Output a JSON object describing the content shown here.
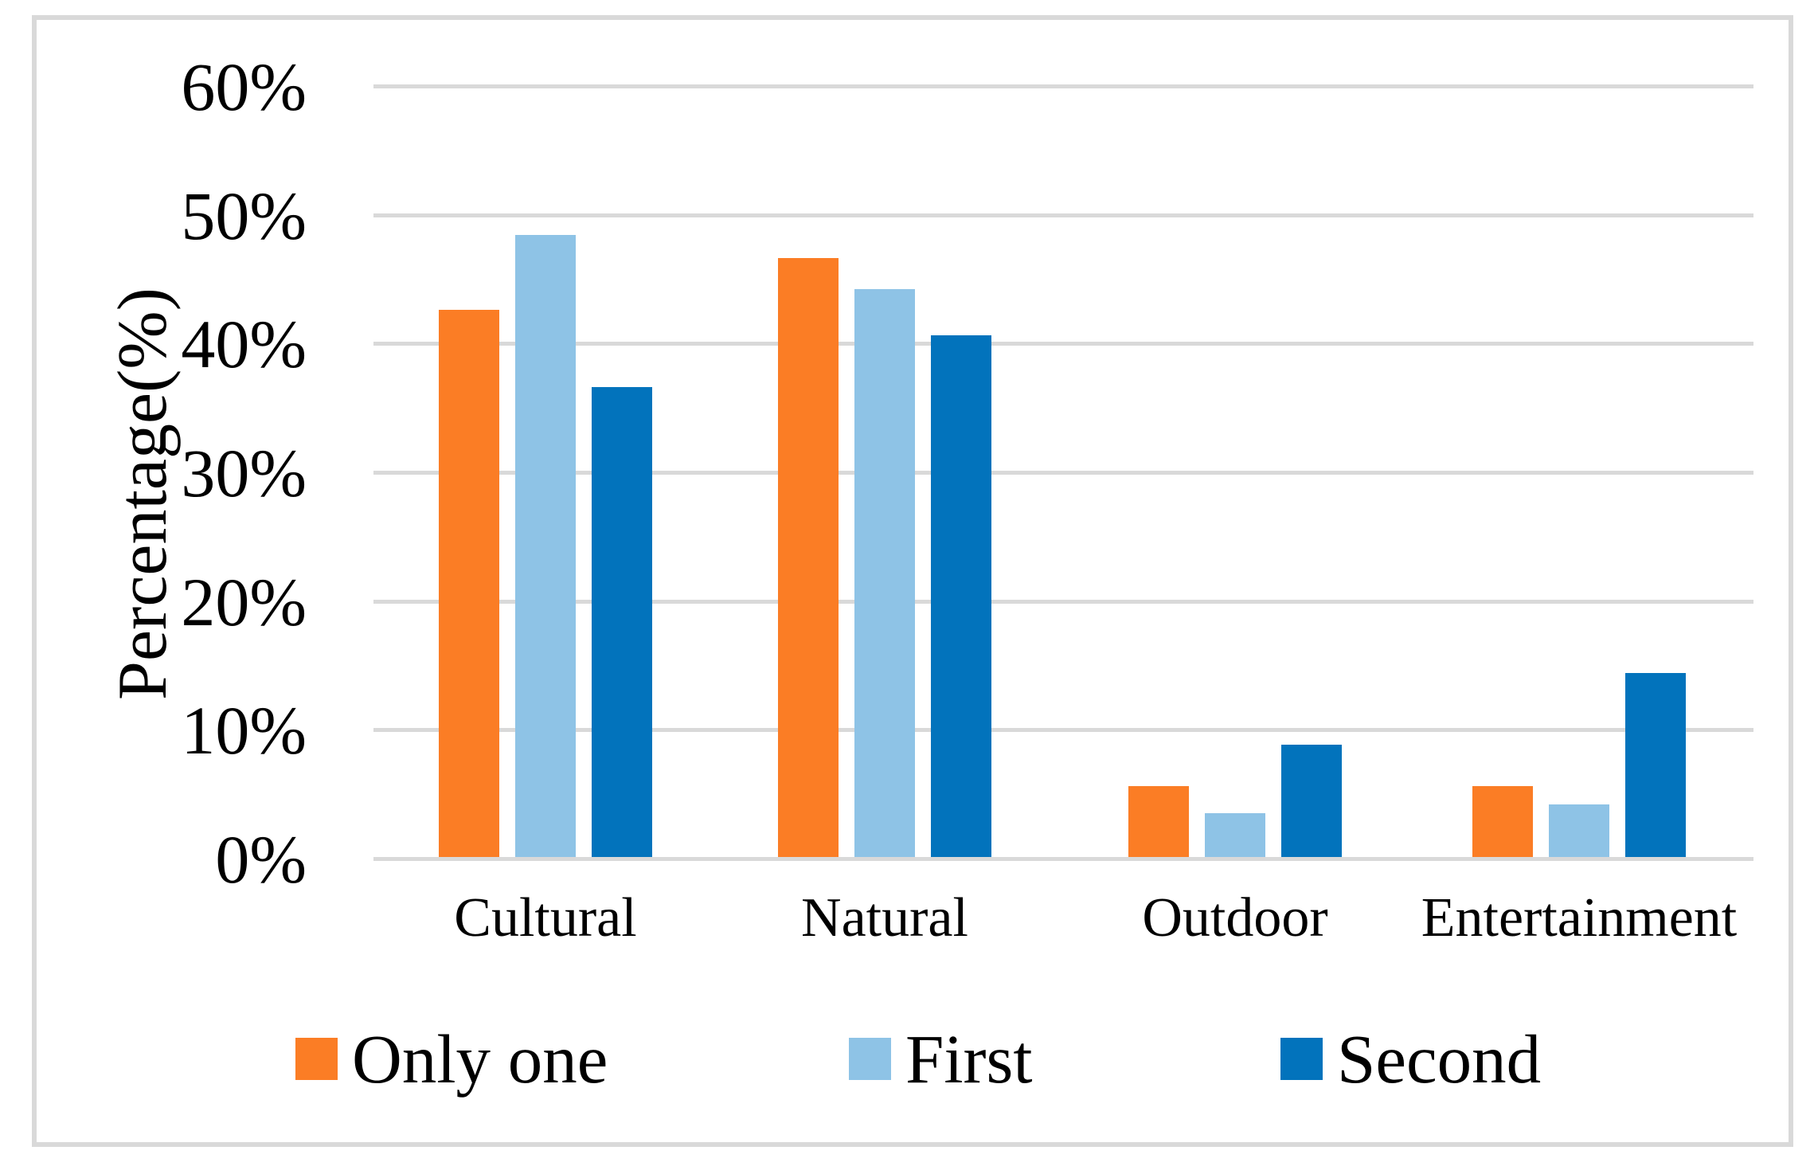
{
  "figure": {
    "background_color": "#ffffff",
    "border_color": "#d9d9d9",
    "gridline_color": "#d9d9d9",
    "text_color": "#000000"
  },
  "chart_data": {
    "type": "bar",
    "title": "",
    "xlabel": "",
    "ylabel": "Percentage(%)",
    "ylim": [
      0,
      60
    ],
    "ytick_step": 10,
    "ytick_suffix": "%",
    "grid": true,
    "legend_position": "bottom",
    "categories": [
      "Cultural",
      "Natural",
      "Outdoor",
      "Entertainment"
    ],
    "series": [
      {
        "name": "Only one",
        "color": "#fb7d25",
        "values": [
          42.5,
          46.5,
          5.5,
          5.5
        ]
      },
      {
        "name": "First",
        "color": "#8ec3e6",
        "values": [
          48.3,
          44.1,
          3.4,
          4.1
        ]
      },
      {
        "name": "Second",
        "color": "#0273bc",
        "values": [
          36.5,
          40.5,
          8.7,
          14.3
        ]
      }
    ]
  }
}
